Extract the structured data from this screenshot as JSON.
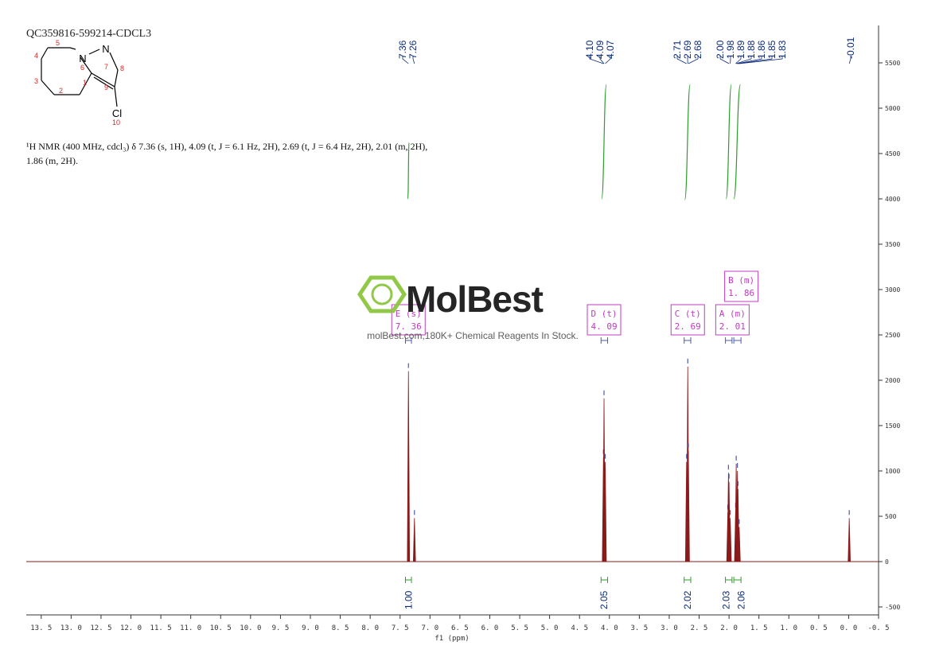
{
  "chart_data": {
    "type": "line",
    "title": "QC359816-599214-CDCL3",
    "nmr_description_line1": "¹H NMR (400 MHz, cdcl₃) δ 7.36 (s, 1H), 4.09 (t, J = 6.1 Hz, 2H), 2.69 (t, J = 6.4 Hz, 2H), 2.01 (m, 2H),",
    "nmr_description_line2": "1.86 (m, 2H).",
    "xlabel": "f1 (ppm)",
    "xlim": [
      13.75,
      -0.5
    ],
    "ylim": [
      -550,
      5950
    ],
    "x_ticks": [
      "13.5",
      "13.0",
      "12.5",
      "12.0",
      "11.5",
      "11.0",
      "10.5",
      "10.0",
      "9.5",
      "9.0",
      "8.5",
      "8.0",
      "7.5",
      "7.0",
      "6.5",
      "6.0",
      "5.5",
      "5.0",
      "4.5",
      "4.0",
      "3.5",
      "3.0",
      "2.5",
      "2.0",
      "1.5",
      "1.0",
      "0.5",
      "0.0",
      "-0.5"
    ],
    "y_ticks": [
      "-500",
      "0",
      "500",
      "1000",
      "1500",
      "2000",
      "2500",
      "3000",
      "3500",
      "4000",
      "4500",
      "5000",
      "5500"
    ],
    "peaks": [
      {
        "ppm": 7.36,
        "intensity": 2100
      },
      {
        "ppm": 7.26,
        "intensity": 480
      },
      {
        "ppm": 4.1,
        "intensity": 1150
      },
      {
        "ppm": 4.09,
        "intensity": 1800
      },
      {
        "ppm": 4.07,
        "intensity": 1100
      },
      {
        "ppm": 2.71,
        "intensity": 1100
      },
      {
        "ppm": 2.69,
        "intensity": 2150
      },
      {
        "ppm": 2.68,
        "intensity": 1220
      },
      {
        "ppm": 2.02,
        "intensity": 540
      },
      {
        "ppm": 2.01,
        "intensity": 980
      },
      {
        "ppm": 2.0,
        "intensity": 880
      },
      {
        "ppm": 1.98,
        "intensity": 480
      },
      {
        "ppm": 1.89,
        "intensity": 560
      },
      {
        "ppm": 1.88,
        "intensity": 1080
      },
      {
        "ppm": 1.86,
        "intensity": 1000
      },
      {
        "ppm": 1.85,
        "intensity": 800
      },
      {
        "ppm": 1.83,
        "intensity": 380
      },
      {
        "ppm": -0.01,
        "intensity": 480
      }
    ],
    "peak_labels": [
      {
        "ppm": 7.36,
        "label": "7.36"
      },
      {
        "ppm": 7.26,
        "label": "7.26"
      },
      {
        "ppm": 4.1,
        "label": "4.10"
      },
      {
        "ppm": 4.09,
        "label": "4.09"
      },
      {
        "ppm": 4.07,
        "label": "4.07"
      },
      {
        "ppm": 2.71,
        "label": "2.71"
      },
      {
        "ppm": 2.69,
        "label": "2.69"
      },
      {
        "ppm": 2.68,
        "label": "2.68"
      },
      {
        "ppm": 2.0,
        "label": "2.00"
      },
      {
        "ppm": 1.98,
        "label": "1.98"
      },
      {
        "ppm": 1.89,
        "label": "1.89"
      },
      {
        "ppm": 1.88,
        "label": "1.88"
      },
      {
        "ppm": 1.86,
        "label": "1.86"
      },
      {
        "ppm": 1.85,
        "label": "1.85"
      },
      {
        "ppm": 1.83,
        "label": "1.83"
      },
      {
        "ppm": -0.01,
        "label": "-0.01"
      }
    ],
    "integrals": [
      {
        "ppm": 7.36,
        "value": "1.00",
        "from": 7.41,
        "to": 7.31
      },
      {
        "ppm": 4.09,
        "value": "2.05",
        "from": 4.14,
        "to": 4.03
      },
      {
        "ppm": 2.69,
        "value": "2.02",
        "from": 2.75,
        "to": 2.64
      },
      {
        "ppm": 2.01,
        "value": "2.03",
        "from": 2.06,
        "to": 1.95
      },
      {
        "ppm": 1.86,
        "value": "2.06",
        "from": 1.92,
        "to": 1.8
      }
    ],
    "integral_curves": [
      {
        "from": 7.37,
        "to": 7.35,
        "y0": 4000,
        "y1": 4620
      },
      {
        "from": 4.13,
        "to": 4.05,
        "y0": 4000,
        "y1": 5260
      },
      {
        "from": 2.74,
        "to": 2.65,
        "y0": 3990,
        "y1": 5260
      },
      {
        "from": 2.05,
        "to": 1.96,
        "y0": 4000,
        "y1": 5260
      },
      {
        "from": 1.92,
        "to": 1.81,
        "y0": 4000,
        "y1": 5260
      }
    ],
    "multiplets": [
      {
        "ppm": 7.36,
        "label": "E (s)",
        "shift": "7.36",
        "range": [
          7.41,
          7.31
        ],
        "level": "low"
      },
      {
        "ppm": 4.09,
        "label": "D (t)",
        "shift": "4.09",
        "range": [
          4.14,
          4.03
        ],
        "level": "low"
      },
      {
        "ppm": 2.69,
        "label": "C (t)",
        "shift": "2.69",
        "range": [
          2.75,
          2.64
        ],
        "level": "low"
      },
      {
        "ppm": 2.01,
        "label": "A (m)",
        "shift": "2.01",
        "range": [
          2.06,
          1.95
        ],
        "level": "low"
      },
      {
        "ppm": 1.86,
        "label": "B (m)",
        "shift": "1.86",
        "range": [
          1.92,
          1.8
        ],
        "level": "high"
      }
    ],
    "grid": false,
    "colors": {
      "spectrum": "#8b1a1a",
      "integral": "#2e9d2e",
      "multiplet": "#c03cc0",
      "peak_label": "#0a2a7a",
      "axis": "#333333"
    }
  },
  "molecule": {
    "atom_numbers": [
      "1",
      "2",
      "3",
      "4",
      "5",
      "6",
      "7",
      "8",
      "9",
      "10"
    ],
    "atom_symbols": [
      "N",
      "N",
      "Cl"
    ],
    "colors": {
      "bond": "#000000",
      "number": "#d42a2a"
    }
  },
  "watermark": {
    "brand": "MolBest",
    "tagline": "molBest.com,180K+ Chemical Reagents In Stock.",
    "colors": {
      "logo": "#8cc63f",
      "text": "#1a1a1a",
      "tagline": "#555555"
    }
  }
}
